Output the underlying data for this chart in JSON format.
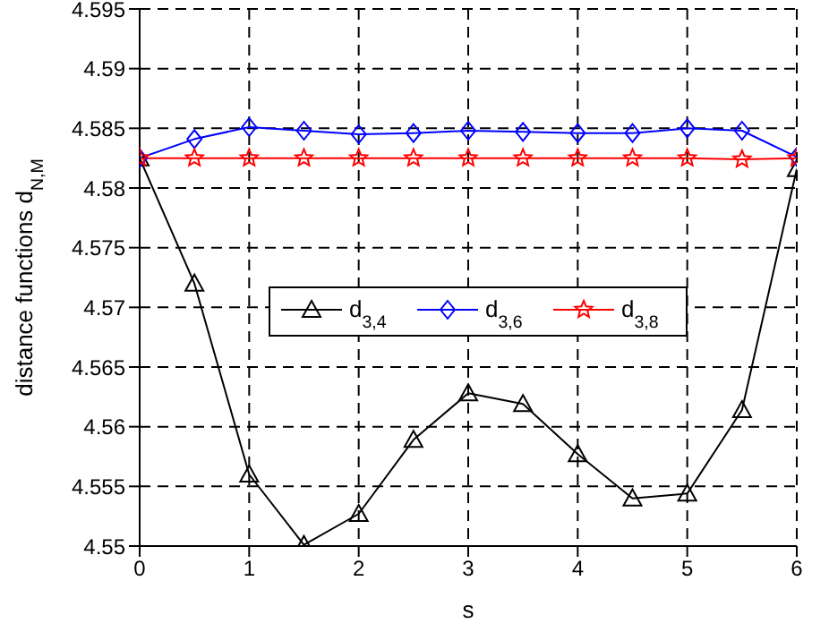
{
  "chart_data": {
    "type": "line",
    "xlabel": "s",
    "ylabel": "distance functions d$_{N,M}$",
    "x": [
      0,
      0.5,
      1,
      1.5,
      2,
      2.5,
      3,
      3.5,
      4,
      4.5,
      5,
      5.5,
      6
    ],
    "series": [
      {
        "name": "d$_{3,4}$",
        "color": "#000000",
        "marker": "triangle",
        "values": [
          4.5825,
          4.572,
          4.556,
          4.5501,
          4.5527,
          4.5589,
          4.5628,
          4.5619,
          4.5577,
          4.554,
          4.5544,
          4.5614,
          4.5816
        ]
      },
      {
        "name": "d$_{3,6}$",
        "color": "#0000ff",
        "marker": "diamond",
        "values": [
          4.5825,
          4.5841,
          4.5851,
          4.5848,
          4.5845,
          4.5846,
          4.5848,
          4.5847,
          4.5846,
          4.5846,
          4.585,
          4.5848,
          4.5826
        ]
      },
      {
        "name": "d$_{3,8}$",
        "color": "#ff0000",
        "marker": "star",
        "values": [
          4.5825,
          4.5825,
          4.5825,
          4.5825,
          4.5825,
          4.5825,
          4.5825,
          4.5825,
          4.5825,
          4.5825,
          4.5825,
          4.5824,
          4.5825
        ]
      }
    ],
    "xlim": [
      0,
      6
    ],
    "xticks": [
      0,
      1,
      2,
      3,
      4,
      5,
      6
    ],
    "ylim": [
      4.55,
      4.595
    ],
    "yticks": [
      4.55,
      4.555,
      4.56,
      4.565,
      4.57,
      4.575,
      4.58,
      4.585,
      4.59,
      4.595
    ],
    "grid": true,
    "line_style": "solid",
    "legend": "center"
  }
}
